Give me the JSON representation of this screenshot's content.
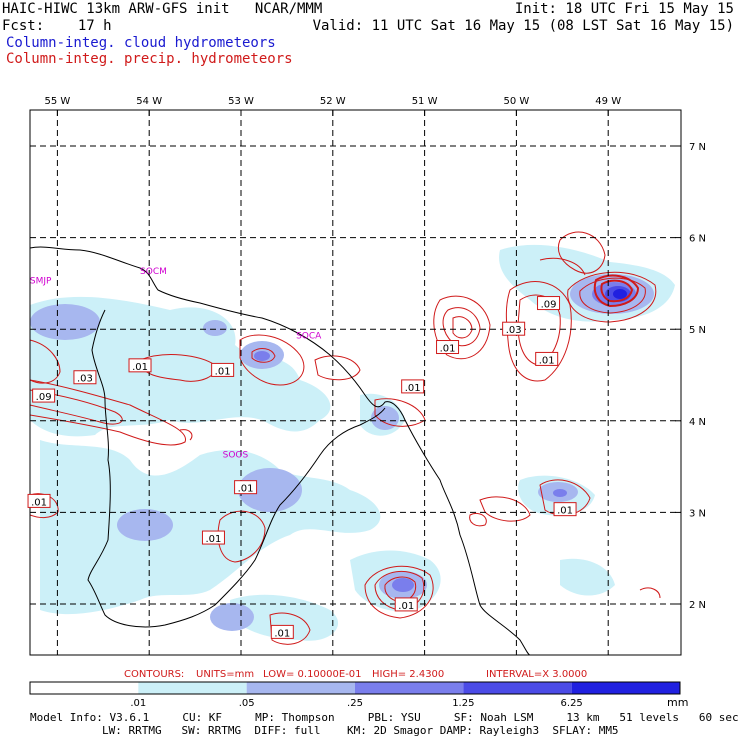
{
  "header": {
    "title": "HAIC-HIWC 13km ARW-GFS init   NCAR/MMM",
    "init": "Init: 18 UTC Fri 15 May 15",
    "fcst_label": "Fcst:",
    "fcst_value": "17 h",
    "valid": "Valid: 11 UTC Sat 16 May 15 (08 LST Sat 16 May 15)",
    "legend_cloud": "Column-integ. cloud hydrometeors",
    "legend_precip": "Column-integ. precip. hydrometeors"
  },
  "map": {
    "lon_labels": [
      {
        "lon": -55,
        "text": "55 W"
      },
      {
        "lon": -54,
        "text": "54 W"
      },
      {
        "lon": -53,
        "text": "53 W"
      },
      {
        "lon": -52,
        "text": "52 W"
      },
      {
        "lon": -51,
        "text": "51 W"
      },
      {
        "lon": -50,
        "text": "50 W"
      },
      {
        "lon": -49,
        "text": "49 W"
      }
    ],
    "lat_labels": [
      {
        "lat": 7,
        "text": "7 N"
      },
      {
        "lat": 6,
        "text": "6 N"
      },
      {
        "lat": 5,
        "text": "5 N"
      },
      {
        "lat": 4,
        "text": "4 N"
      },
      {
        "lat": 3,
        "text": "3 N"
      },
      {
        "lat": 2,
        "text": "2 N"
      }
    ],
    "stations": [
      {
        "id": "SMJP",
        "lon": -55.3,
        "lat": 5.5
      },
      {
        "id": "SOCM",
        "lon": -54.1,
        "lat": 5.6
      },
      {
        "id": "SOCA",
        "lon": -52.4,
        "lat": 4.9
      },
      {
        "id": "SOOS",
        "lon": -53.2,
        "lat": 3.6
      }
    ],
    "contour_labels": [
      {
        "text": ".01",
        "lon": -54.1,
        "lat": 4.6
      },
      {
        "text": ".03",
        "lon": -54.7,
        "lat": 4.47
      },
      {
        "text": ".09",
        "lon": -55.15,
        "lat": 4.27
      },
      {
        "text": ".01",
        "lon": -53.2,
        "lat": 4.55
      },
      {
        "text": ".01",
        "lon": -51.13,
        "lat": 4.37
      },
      {
        "text": ".01",
        "lon": -50.75,
        "lat": 4.8
      },
      {
        "text": ".03",
        "lon": -50.03,
        "lat": 5.0
      },
      {
        "text": ".09",
        "lon": -49.65,
        "lat": 5.28
      },
      {
        "text": ".01",
        "lon": -49.67,
        "lat": 4.67
      },
      {
        "text": ".01",
        "lon": -55.2,
        "lat": 3.12
      },
      {
        "text": ".01",
        "lon": -52.95,
        "lat": 3.27
      },
      {
        "text": ".01",
        "lon": -53.3,
        "lat": 2.72
      },
      {
        "text": ".01",
        "lon": -51.2,
        "lat": 1.99
      },
      {
        "text": ".01",
        "lon": -49.47,
        "lat": 3.03
      },
      {
        "text": ".01",
        "lon": -52.55,
        "lat": 1.69
      }
    ]
  },
  "contour_info": {
    "contours": "CONTOURS:",
    "units": "UNITS=mm",
    "low": "LOW= 0.10000E-01",
    "high": "HIGH=  2.4300",
    "interval": "INTERVAL=X  3.0000"
  },
  "colorbar": {
    "ticks": [
      ".01",
      ".05",
      ".25",
      "1.25",
      "6.25"
    ],
    "unit": "mm",
    "colors": [
      "#ffffff",
      "#ccf0f8",
      "#a7b7ef",
      "#7a7eec",
      "#4b4be6",
      "#2020e0"
    ]
  },
  "model_info": {
    "line1": "Model Info: V3.6.1     CU: KF     MP: Thompson     PBL: YSU     SF: Noah LSM     13 km   51 levels   60 sec",
    "line2": "LW: RRTMG   SW: RRTMG  DIFF: full    KM: 2D Smagor DAMP: Rayleigh3  SFLAY: MM5"
  }
}
